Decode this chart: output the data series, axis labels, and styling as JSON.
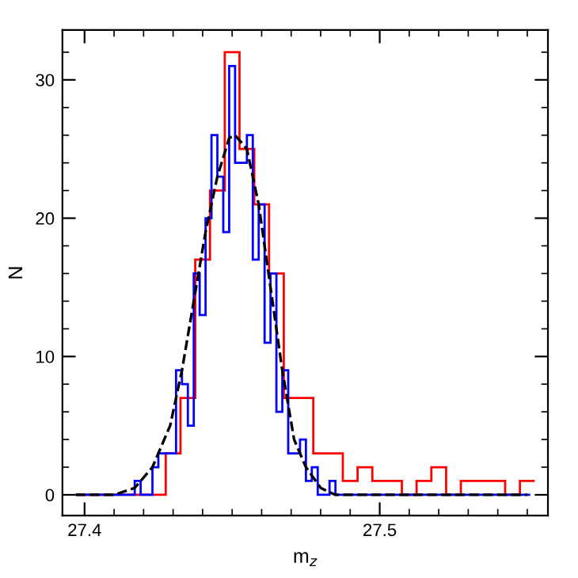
{
  "chart_data": {
    "type": "histogram",
    "xlabel": "m$_{z}$",
    "ylabel": "N",
    "xlim": [
      27.3925,
      27.557
    ],
    "ylim": [
      -1.5,
      33.6
    ],
    "xticks": [
      27.4,
      {
        "value": 27.41,
        "label": null
      },
      {
        "value": 27.42,
        "label": null
      },
      {
        "value": 27.43,
        "label": null
      },
      {
        "value": 27.44,
        "label": null
      },
      {
        "value": 27.45,
        "label": null
      },
      {
        "value": 27.46,
        "label": null
      },
      {
        "value": 27.47,
        "label": null
      },
      {
        "value": 27.48,
        "label": null
      },
      {
        "value": 27.49,
        "label": null
      },
      27.5,
      {
        "value": 27.51,
        "label": null
      },
      {
        "value": 27.52,
        "label": null
      },
      {
        "value": 27.53,
        "label": null
      },
      {
        "value": 27.54,
        "label": null
      },
      {
        "value": 27.55,
        "label": null
      }
    ],
    "yticks": [
      0,
      {
        "value": 2,
        "label": null
      },
      {
        "value": 4,
        "label": null
      },
      {
        "value": 6,
        "label": null
      },
      {
        "value": 8,
        "label": null
      },
      10,
      {
        "value": 12,
        "label": null
      },
      {
        "value": 14,
        "label": null
      },
      {
        "value": 16,
        "label": null
      },
      {
        "value": 18,
        "label": null
      },
      20,
      {
        "value": 22,
        "label": null
      },
      {
        "value": 24,
        "label": null
      },
      {
        "value": 26,
        "label": null
      },
      {
        "value": 28,
        "label": null
      },
      30,
      {
        "value": 32,
        "label": null
      }
    ],
    "grid": false,
    "legend": false,
    "series": [
      {
        "color": "#ff0000",
        "bins": [
          27.3975,
          27.4025,
          27.4075,
          27.4125,
          27.4175,
          27.4225,
          27.4275,
          27.4325,
          27.4375,
          27.4425,
          27.4475,
          27.4525,
          27.4575,
          27.4625,
          27.4675,
          27.4725,
          27.4775,
          27.4825,
          27.4875,
          27.4925,
          27.4975,
          27.5025,
          27.5075,
          27.5125,
          27.5175,
          27.5225,
          27.5275,
          27.5325,
          27.5375,
          27.5425,
          27.5475,
          27.5525
        ],
        "values": [
          0,
          0,
          0,
          0,
          0,
          0,
          3,
          7,
          17,
          22,
          32,
          25,
          21,
          16,
          7,
          7,
          3,
          3,
          1,
          2,
          1,
          1,
          0,
          1,
          2,
          0,
          1,
          1,
          1,
          0,
          1
        ]
      },
      {
        "color": "#0000ff",
        "bins": [
          27.397,
          27.399,
          27.401,
          27.403,
          27.405,
          27.407,
          27.409,
          27.411,
          27.413,
          27.415,
          27.417,
          27.419,
          27.421,
          27.423,
          27.425,
          27.427,
          27.429,
          27.431,
          27.433,
          27.435,
          27.437,
          27.439,
          27.441,
          27.443,
          27.445,
          27.447,
          27.449,
          27.451,
          27.453,
          27.455,
          27.457,
          27.459,
          27.461,
          27.463,
          27.465,
          27.467,
          27.469,
          27.471,
          27.473,
          27.475,
          27.477,
          27.479,
          27.481,
          27.483,
          27.485,
          27.487,
          27.489,
          27.491,
          27.493,
          27.495,
          27.497,
          27.499,
          27.501,
          27.503,
          27.505,
          27.507,
          27.509,
          27.511,
          27.513,
          27.515,
          27.517,
          27.519,
          27.521,
          27.523,
          27.525,
          27.527,
          27.529,
          27.531,
          27.533,
          27.535,
          27.537,
          27.539,
          27.541,
          27.543,
          27.545,
          27.547,
          27.549,
          27.551
        ],
        "values": [
          0,
          0,
          0,
          0,
          0,
          0,
          0,
          0,
          0,
          0,
          1,
          0,
          0,
          2,
          3,
          3,
          3,
          9,
          8,
          5,
          16,
          13,
          20,
          26,
          23,
          19,
          31,
          24,
          24,
          26,
          17,
          21,
          11,
          16,
          6,
          9,
          3,
          3,
          4,
          1,
          2,
          0,
          0,
          1,
          0,
          0,
          0,
          0,
          0,
          0,
          0,
          0,
          0,
          0,
          0,
          0,
          0,
          0,
          0,
          0,
          0,
          0,
          0,
          0,
          0,
          0,
          0,
          0,
          0,
          0,
          0,
          0,
          0,
          0,
          0,
          0,
          0
        ]
      },
      {
        "type": "line",
        "color": "#000000",
        "line_style": "dashed",
        "x": [
          27.397,
          27.41,
          27.417,
          27.423,
          27.429,
          27.433,
          27.437,
          27.441,
          27.445,
          27.449,
          27.451,
          27.455,
          27.459,
          27.463,
          27.467,
          27.471,
          27.475,
          27.48,
          27.485,
          27.55
        ],
        "values": [
          0,
          0,
          0.5,
          2,
          5,
          9,
          14,
          19,
          23,
          25.8,
          26,
          25,
          21,
          15,
          9,
          4,
          2,
          0.5,
          0,
          0
        ]
      }
    ]
  }
}
